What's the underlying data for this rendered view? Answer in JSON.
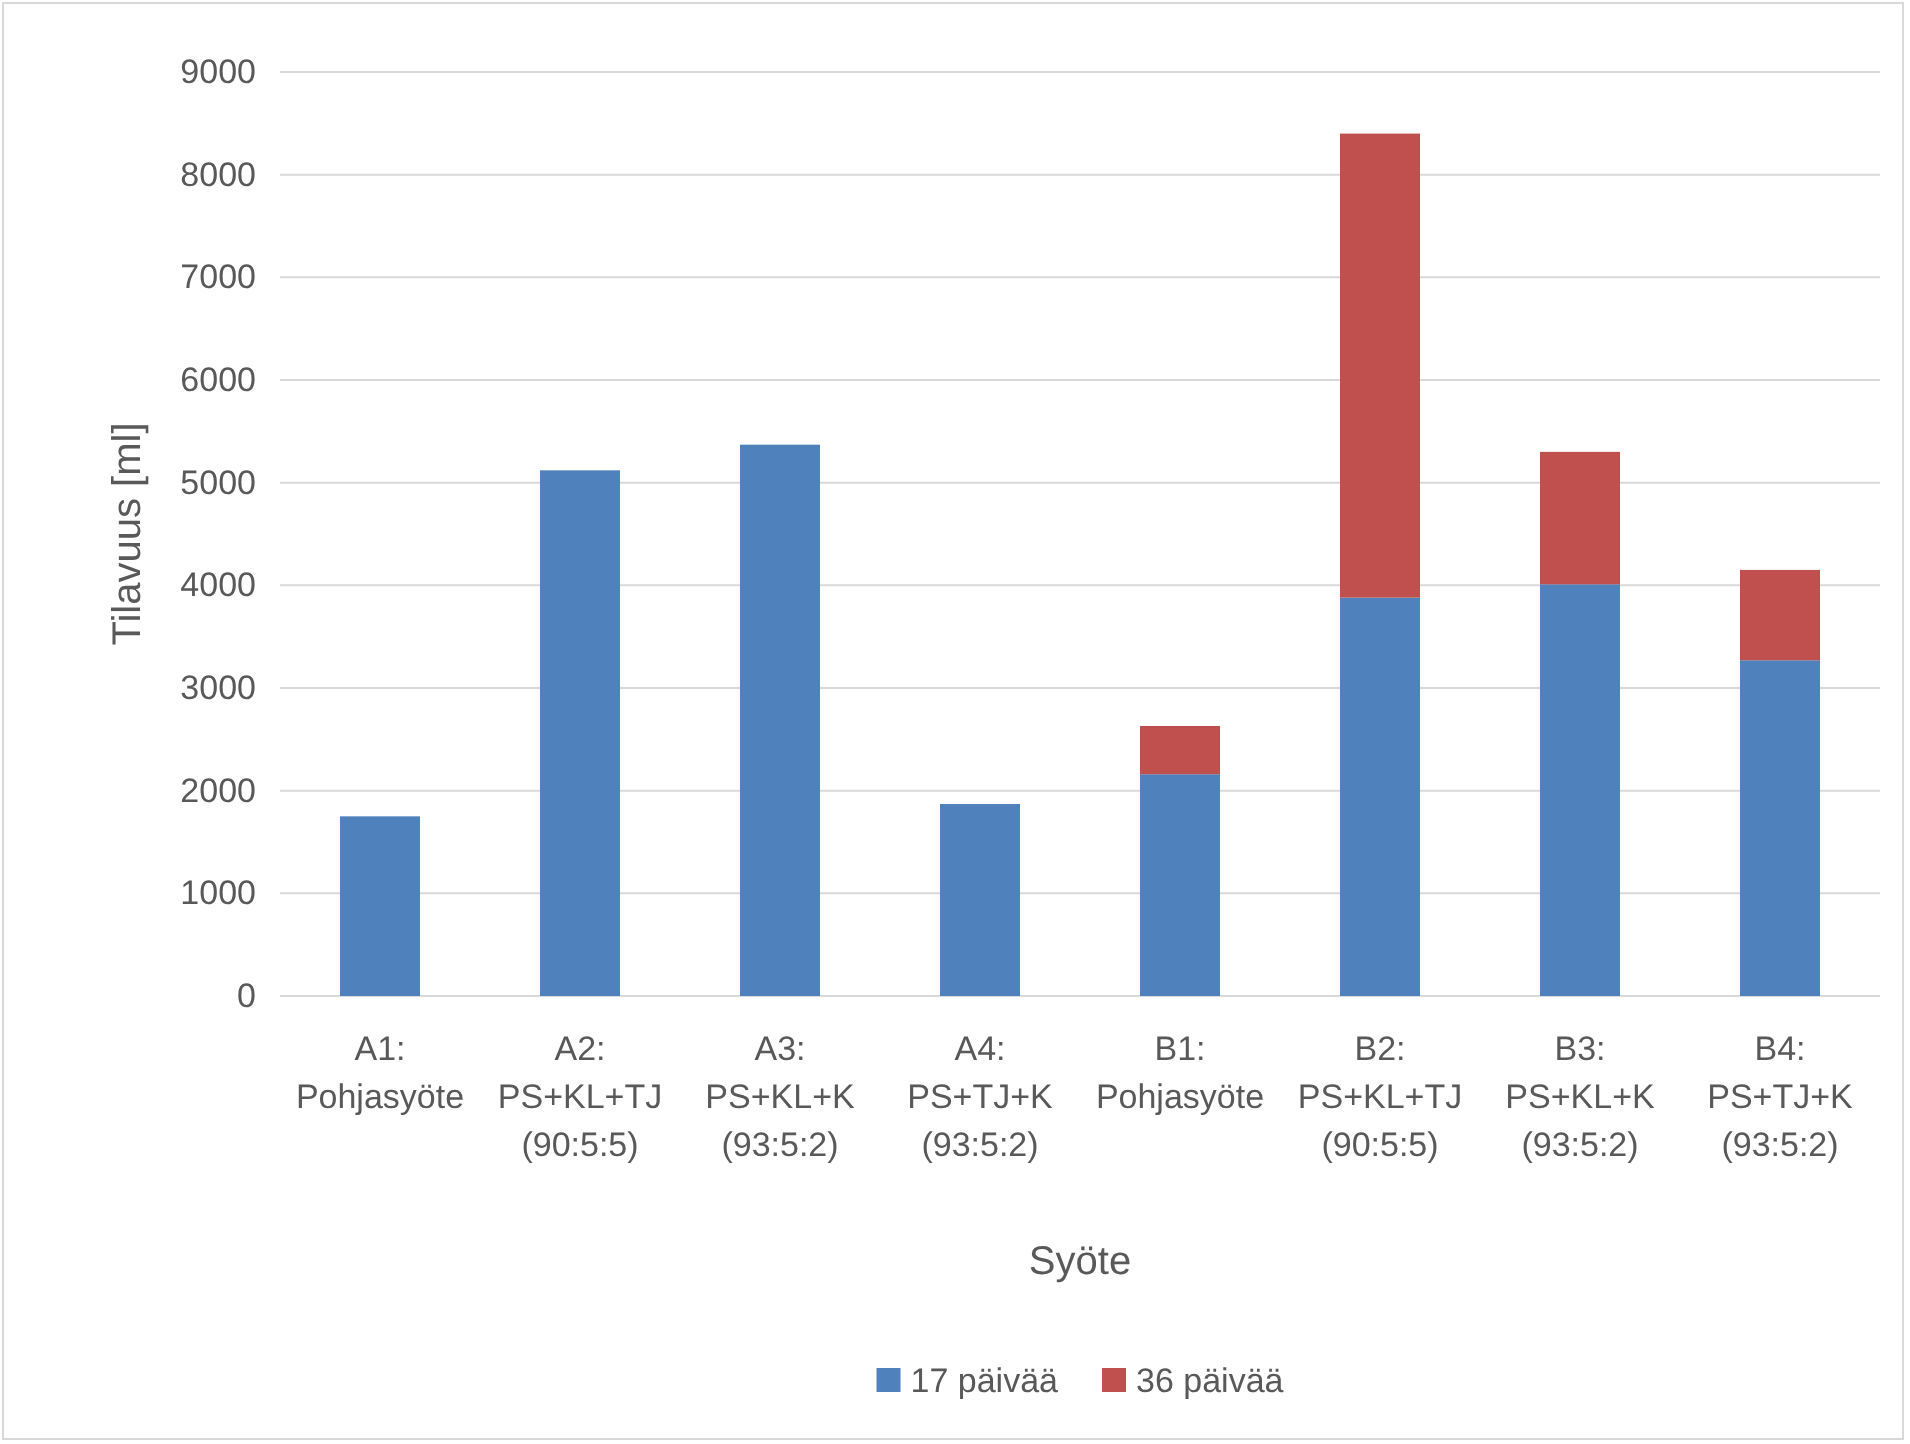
{
  "chart_data": {
    "type": "bar",
    "xlabel": "Syöte",
    "ylabel": "Tilavuus [ml]",
    "categories": [
      "A1: Pohjasyöte",
      "A2: PS+KL+TJ (90:5:5)",
      "A3: PS+KL+K (93:5:2)",
      "A4: PS+TJ+K (93:5:2)",
      "B1: Pohjasyöte",
      "B2: PS+KL+TJ (90:5:5)",
      "B3: PS+KL+K (93:5:2)",
      "B4: PS+TJ+K (93:5:2)"
    ],
    "stacked": true,
    "series": [
      {
        "name": "17 päivää",
        "color": "#4f81bd",
        "values": [
          1750,
          5120,
          5370,
          1870,
          2160,
          3880,
          4010,
          3270
        ]
      },
      {
        "name": "36 päivää",
        "color": "#c0504d",
        "values": [
          null,
          null,
          null,
          null,
          470,
          4520,
          1290,
          880
        ]
      }
    ],
    "ylim": [
      0,
      9000
    ],
    "yticks": [
      0,
      1000,
      2000,
      3000,
      4000,
      5000,
      6000,
      7000,
      8000,
      9000
    ],
    "grid": "y",
    "legend": "bottom"
  }
}
